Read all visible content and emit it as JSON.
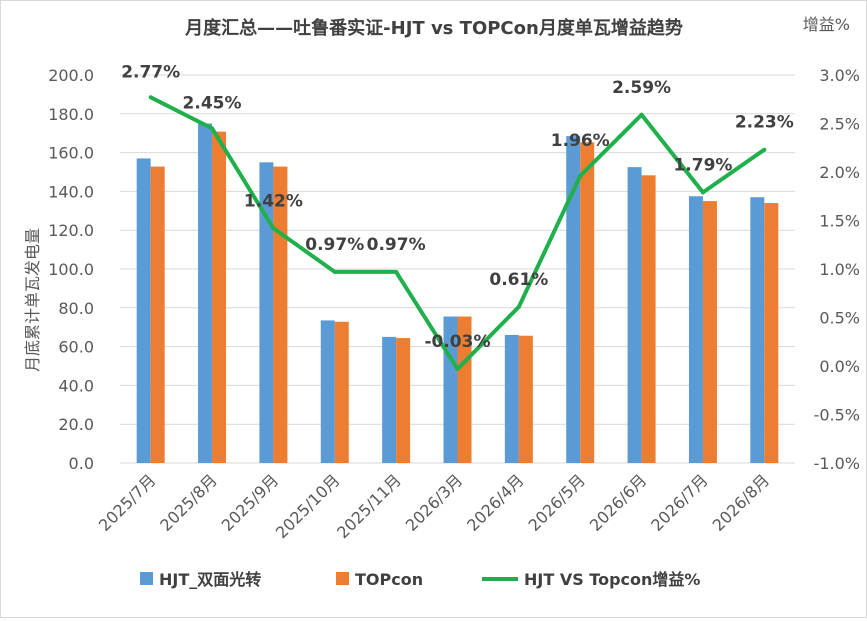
{
  "chart_data": {
    "type": "bar",
    "title": "月度汇总——吐鲁番实证-HJT vs TOPCon月度单瓦增益趋势",
    "ylabel": "月底累计单瓦发电量",
    "y2label": "增益%",
    "ylim": [
      0,
      200
    ],
    "y2lim": [
      -1.0,
      3.0
    ],
    "y_ticks": [
      "0.0",
      "20.0",
      "40.0",
      "60.0",
      "80.0",
      "100.0",
      "120.0",
      "140.0",
      "160.0",
      "180.0",
      "200.0"
    ],
    "y2_ticks": [
      "-1.0%",
      "-0.5%",
      "0.0%",
      "0.5%",
      "1.0%",
      "1.5%",
      "2.0%",
      "2.5%",
      "3.0%"
    ],
    "grid": true,
    "legend_position": "bottom",
    "categories": [
      "2025/7月",
      "2025/8月",
      "2025/9月",
      "2025/10月",
      "2025/11月",
      "2026/3月",
      "2026/4月",
      "2026/5月",
      "2026/6月",
      "2026/7月",
      "2026/8月"
    ],
    "series": [
      {
        "name": "HJT_双面光转",
        "type": "bar",
        "axis": "left",
        "color": "#5b9bd5",
        "values": [
          157.0,
          175.0,
          155.0,
          73.5,
          65.0,
          75.5,
          66.0,
          168.5,
          152.5,
          137.5,
          137.0
        ]
      },
      {
        "name": "TOPcon",
        "type": "bar",
        "axis": "left",
        "color": "#ed7d31",
        "values": [
          152.8,
          170.8,
          152.8,
          72.8,
          64.4,
          75.5,
          65.6,
          165.3,
          148.3,
          135.0,
          134.0
        ]
      },
      {
        "name": "HJT VS Topcon增益%",
        "type": "line",
        "axis": "right",
        "color": "#1fb04b",
        "values": [
          2.77,
          2.45,
          1.42,
          0.97,
          0.97,
          -0.03,
          0.61,
          1.96,
          2.59,
          1.79,
          2.23
        ],
        "labels": [
          "2.77%",
          "2.45%",
          "1.42%",
          "0.97%",
          "0.97%",
          "-0.03%",
          "0.61%",
          "1.96%",
          "2.59%",
          "1.79%",
          "2.23%"
        ]
      }
    ]
  }
}
